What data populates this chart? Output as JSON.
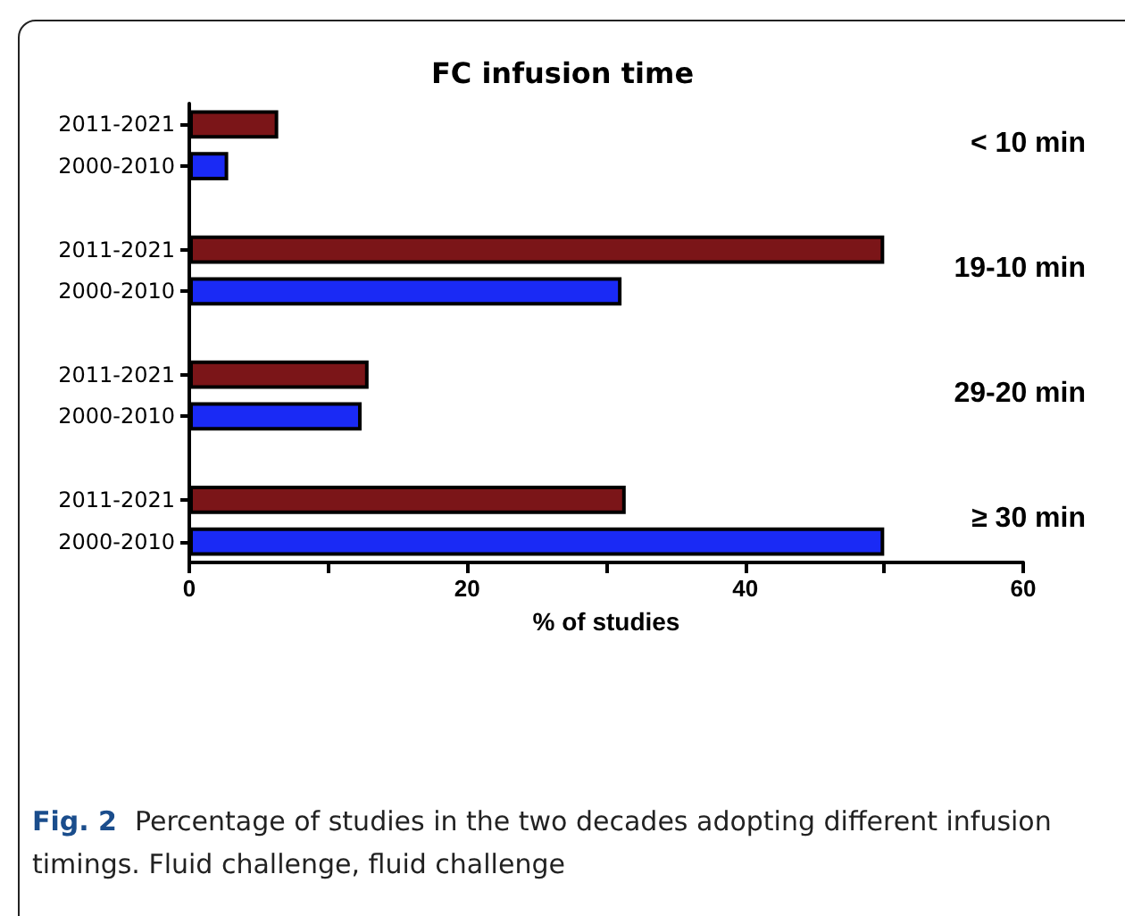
{
  "chart_data": {
    "type": "bar",
    "orientation": "horizontal",
    "title": "FC infusion time",
    "xlabel": "% of studies",
    "categories": [
      "2011-2021",
      "2000-2010",
      null,
      "2011-2021",
      "2000-2010",
      null,
      "2011-2021",
      "2000-2010",
      null,
      "2011-2021",
      "2000-2010"
    ],
    "values": [
      6.4,
      2.8,
      null,
      50,
      31.1,
      null,
      12.9,
      12.4,
      null,
      31.4,
      50
    ],
    "colors": [
      "#7b1518",
      "#1a2af5",
      null,
      "#7b1518",
      "#1a2af5",
      null,
      "#7b1518",
      "#1a2af5",
      null,
      "#7b1518",
      "#1a2af5"
    ],
    "xlim": [
      0,
      60
    ],
    "xticks": [
      0,
      {
        "value": 10,
        "label": null
      },
      20,
      {
        "value": 30,
        "label": null
      },
      40,
      {
        "value": 50,
        "label": null
      },
      60
    ],
    "annotations": [
      "< 10 min",
      "19-10 min",
      "29-20 min",
      "≥ 30 min",
      "Fig. 2",
      "Percentage of studies in the two decades adopting different infusion timings. Fluid challenge, fluid challenge"
    ],
    "grid": false
  }
}
